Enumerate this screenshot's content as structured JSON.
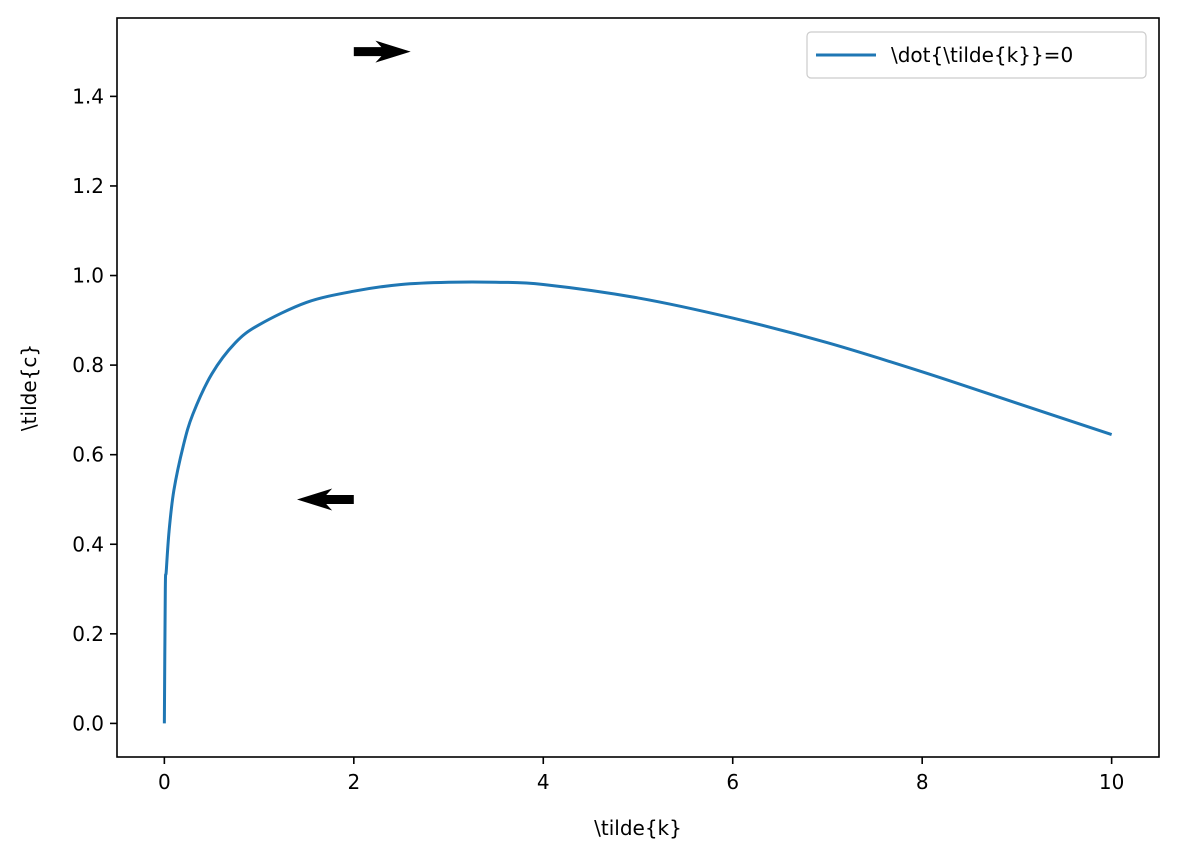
{
  "chart_data": {
    "type": "line",
    "title": "",
    "xlabel": "\\tilde{k}",
    "ylabel": "\\tilde{c}",
    "xlim": [
      -0.5,
      10.5
    ],
    "ylim": [
      -0.075,
      1.575
    ],
    "xticks": [
      0,
      2,
      4,
      6,
      8,
      10
    ],
    "xtick_labels": [
      "0",
      "2",
      "4",
      "6",
      "8",
      "10"
    ],
    "yticks": [
      0.0,
      0.2,
      0.4,
      0.6,
      0.8,
      1.0,
      1.2,
      1.4
    ],
    "ytick_labels": [
      "0.0",
      "0.2",
      "0.4",
      "0.6",
      "0.8",
      "1.0",
      "1.2",
      "1.4"
    ],
    "grid": false,
    "legend_position": "top-right",
    "series": [
      {
        "name": "\\dot{\\tilde{k}}=0",
        "color": "#1f77b4",
        "x": [
          0.0,
          0.01,
          0.02,
          0.05,
          0.1,
          0.2,
          0.3,
          0.5,
          0.75,
          1.0,
          1.5,
          2.0,
          2.5,
          3.0,
          3.5,
          4.0,
          5.0,
          6.0,
          7.0,
          8.0,
          9.0,
          10.0
        ],
        "y": [
          0.0,
          0.3,
          0.34,
          0.43,
          0.52,
          0.62,
          0.69,
          0.78,
          0.85,
          0.89,
          0.94,
          0.965,
          0.98,
          0.985,
          0.985,
          0.98,
          0.95,
          0.905,
          0.85,
          0.785,
          0.715,
          0.645
        ]
      }
    ],
    "annotations": [
      {
        "type": "arrow",
        "direction": "right",
        "x": 2.0,
        "y": 1.5,
        "dx": 0.6,
        "color": "#000000"
      },
      {
        "type": "arrow",
        "direction": "left",
        "x": 2.0,
        "y": 0.5,
        "dx": -0.6,
        "color": "#000000"
      }
    ]
  }
}
